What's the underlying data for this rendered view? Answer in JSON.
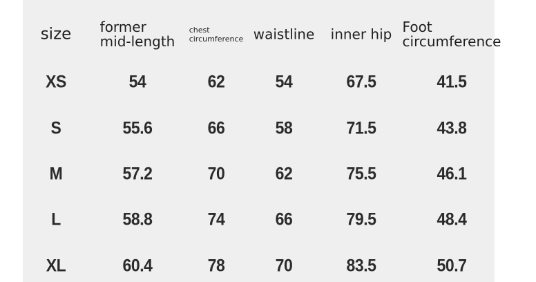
{
  "table": {
    "headers": [
      "size",
      "former\nmid-length",
      "chest\ncircumference",
      "waistline",
      "inner hip",
      "Foot\ncircumference"
    ],
    "rows": [
      [
        "XS",
        "54",
        "62",
        "54",
        "67.5",
        "41.5"
      ],
      [
        "S",
        "55.6",
        "66",
        "58",
        "71.5",
        "43.8"
      ],
      [
        "M",
        "57.2",
        "70",
        "62",
        "75.5",
        "46.1"
      ],
      [
        "L",
        "58.8",
        "74",
        "66",
        "79.5",
        "48.4"
      ],
      [
        "XL",
        "60.4",
        "78",
        "70",
        "83.5",
        "50.7"
      ]
    ]
  },
  "colors": {
    "panel": "#efefef",
    "text": "#1f1f1f"
  }
}
